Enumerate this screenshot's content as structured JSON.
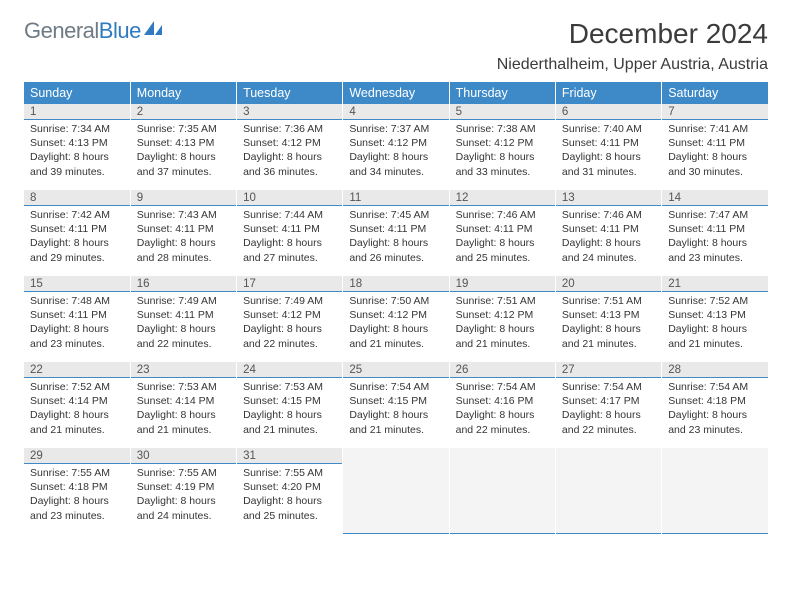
{
  "brand": {
    "part1": "General",
    "part2": "Blue"
  },
  "title": "December 2024",
  "location": "Niederthalheim, Upper Austria, Austria",
  "colors": {
    "header_bg": "#3e8ac9",
    "header_text": "#ffffff",
    "daybar_bg": "#e9e9e9",
    "daybar_border": "#3e8ac9",
    "body_text": "#353535",
    "brand_gray": "#6e7b85",
    "brand_blue": "#2f7ac0",
    "page_bg": "#ffffff"
  },
  "weekdays": [
    "Sunday",
    "Monday",
    "Tuesday",
    "Wednesday",
    "Thursday",
    "Friday",
    "Saturday"
  ],
  "weeks": [
    [
      {
        "n": "1",
        "sunrise": "7:34 AM",
        "sunset": "4:13 PM",
        "dl": "8 hours and 39 minutes."
      },
      {
        "n": "2",
        "sunrise": "7:35 AM",
        "sunset": "4:13 PM",
        "dl": "8 hours and 37 minutes."
      },
      {
        "n": "3",
        "sunrise": "7:36 AM",
        "sunset": "4:12 PM",
        "dl": "8 hours and 36 minutes."
      },
      {
        "n": "4",
        "sunrise": "7:37 AM",
        "sunset": "4:12 PM",
        "dl": "8 hours and 34 minutes."
      },
      {
        "n": "5",
        "sunrise": "7:38 AM",
        "sunset": "4:12 PM",
        "dl": "8 hours and 33 minutes."
      },
      {
        "n": "6",
        "sunrise": "7:40 AM",
        "sunset": "4:11 PM",
        "dl": "8 hours and 31 minutes."
      },
      {
        "n": "7",
        "sunrise": "7:41 AM",
        "sunset": "4:11 PM",
        "dl": "8 hours and 30 minutes."
      }
    ],
    [
      {
        "n": "8",
        "sunrise": "7:42 AM",
        "sunset": "4:11 PM",
        "dl": "8 hours and 29 minutes."
      },
      {
        "n": "9",
        "sunrise": "7:43 AM",
        "sunset": "4:11 PM",
        "dl": "8 hours and 28 minutes."
      },
      {
        "n": "10",
        "sunrise": "7:44 AM",
        "sunset": "4:11 PM",
        "dl": "8 hours and 27 minutes."
      },
      {
        "n": "11",
        "sunrise": "7:45 AM",
        "sunset": "4:11 PM",
        "dl": "8 hours and 26 minutes."
      },
      {
        "n": "12",
        "sunrise": "7:46 AM",
        "sunset": "4:11 PM",
        "dl": "8 hours and 25 minutes."
      },
      {
        "n": "13",
        "sunrise": "7:46 AM",
        "sunset": "4:11 PM",
        "dl": "8 hours and 24 minutes."
      },
      {
        "n": "14",
        "sunrise": "7:47 AM",
        "sunset": "4:11 PM",
        "dl": "8 hours and 23 minutes."
      }
    ],
    [
      {
        "n": "15",
        "sunrise": "7:48 AM",
        "sunset": "4:11 PM",
        "dl": "8 hours and 23 minutes."
      },
      {
        "n": "16",
        "sunrise": "7:49 AM",
        "sunset": "4:11 PM",
        "dl": "8 hours and 22 minutes."
      },
      {
        "n": "17",
        "sunrise": "7:49 AM",
        "sunset": "4:12 PM",
        "dl": "8 hours and 22 minutes."
      },
      {
        "n": "18",
        "sunrise": "7:50 AM",
        "sunset": "4:12 PM",
        "dl": "8 hours and 21 minutes."
      },
      {
        "n": "19",
        "sunrise": "7:51 AM",
        "sunset": "4:12 PM",
        "dl": "8 hours and 21 minutes."
      },
      {
        "n": "20",
        "sunrise": "7:51 AM",
        "sunset": "4:13 PM",
        "dl": "8 hours and 21 minutes."
      },
      {
        "n": "21",
        "sunrise": "7:52 AM",
        "sunset": "4:13 PM",
        "dl": "8 hours and 21 minutes."
      }
    ],
    [
      {
        "n": "22",
        "sunrise": "7:52 AM",
        "sunset": "4:14 PM",
        "dl": "8 hours and 21 minutes."
      },
      {
        "n": "23",
        "sunrise": "7:53 AM",
        "sunset": "4:14 PM",
        "dl": "8 hours and 21 minutes."
      },
      {
        "n": "24",
        "sunrise": "7:53 AM",
        "sunset": "4:15 PM",
        "dl": "8 hours and 21 minutes."
      },
      {
        "n": "25",
        "sunrise": "7:54 AM",
        "sunset": "4:15 PM",
        "dl": "8 hours and 21 minutes."
      },
      {
        "n": "26",
        "sunrise": "7:54 AM",
        "sunset": "4:16 PM",
        "dl": "8 hours and 22 minutes."
      },
      {
        "n": "27",
        "sunrise": "7:54 AM",
        "sunset": "4:17 PM",
        "dl": "8 hours and 22 minutes."
      },
      {
        "n": "28",
        "sunrise": "7:54 AM",
        "sunset": "4:18 PM",
        "dl": "8 hours and 23 minutes."
      }
    ],
    [
      {
        "n": "29",
        "sunrise": "7:55 AM",
        "sunset": "4:18 PM",
        "dl": "8 hours and 23 minutes."
      },
      {
        "n": "30",
        "sunrise": "7:55 AM",
        "sunset": "4:19 PM",
        "dl": "8 hours and 24 minutes."
      },
      {
        "n": "31",
        "sunrise": "7:55 AM",
        "sunset": "4:20 PM",
        "dl": "8 hours and 25 minutes."
      },
      null,
      null,
      null,
      null
    ]
  ],
  "labels": {
    "sunrise": "Sunrise:",
    "sunset": "Sunset:",
    "daylight": "Daylight:"
  }
}
